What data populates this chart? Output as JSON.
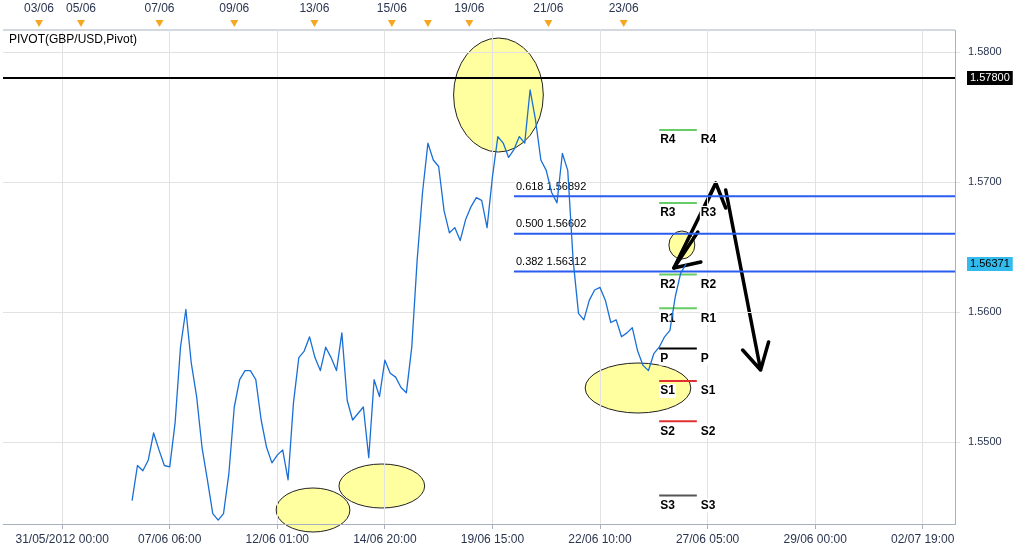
{
  "chart_data": {
    "type": "line",
    "title": "PIVOT(GBP/USD,Pivot)",
    "categories": [
      null,
      null,
      null,
      null,
      null,
      null,
      null,
      null,
      null,
      null,
      null,
      "31/05/2012 00:00",
      null,
      null,
      null,
      null,
      null,
      null,
      null,
      null,
      null,
      null,
      null,
      null,
      null,
      null,
      null,
      null,
      null,
      null,
      null,
      "07/06 06:00",
      null,
      null,
      null,
      null,
      null,
      null,
      null,
      null,
      null,
      null,
      null,
      null,
      null,
      null,
      null,
      null,
      null,
      null,
      null,
      "12/06 01:00",
      null,
      null,
      null,
      null,
      null,
      null,
      null,
      null,
      null,
      null,
      null,
      null,
      null,
      null,
      null,
      null,
      null,
      null,
      null,
      "14/06 20:00",
      null,
      null,
      null,
      null,
      null,
      null,
      null,
      null,
      null,
      null,
      null,
      null,
      null,
      null,
      null,
      null,
      null,
      null,
      null,
      "19/06 15:00",
      null,
      null,
      null,
      null,
      null,
      null,
      null,
      null,
      null,
      null,
      null,
      null,
      null,
      null,
      null,
      null,
      null,
      null,
      null,
      "22/06 10:00",
      null,
      null,
      null,
      null,
      null,
      null,
      null,
      null,
      null,
      null,
      null,
      null,
      null,
      null,
      null,
      null,
      null,
      null,
      null,
      "27/06 05:00",
      null,
      null,
      null,
      null,
      null,
      null,
      null,
      null,
      null,
      null,
      null,
      null,
      null,
      null,
      null,
      null,
      null,
      null,
      null,
      "29/06 00:00",
      null,
      null,
      null,
      null,
      null,
      null,
      null,
      null,
      null,
      null,
      null,
      null,
      null,
      null,
      null,
      null,
      null,
      null,
      null,
      "02/07 19:00",
      null,
      null,
      null,
      null,
      null,
      null
    ],
    "ylim": [
      1.5437,
      1.5817
    ],
    "yticks": [
      {
        "value": 1.55,
        "label": "1.5500"
      },
      {
        "value": 1.56,
        "label": "1.5600"
      },
      {
        "value": 1.57,
        "label": "1.5700"
      },
      {
        "value": 1.58,
        "label": "1.5800"
      }
    ],
    "grid": true,
    "series": [
      {
        "color": "#1a6fd6",
        "values": [
          null,
          null,
          null,
          null,
          null,
          null,
          null,
          null,
          null,
          null,
          null,
          null,
          null,
          null,
          null,
          null,
          null,
          null,
          null,
          null,
          null,
          null,
          null,
          null,
          1.5455,
          1.5482,
          1.5478,
          1.5486,
          1.5507,
          1.5494,
          1.5482,
          1.5481,
          1.5515,
          1.5573,
          1.5602,
          1.5561,
          1.5535,
          1.5496,
          1.5471,
          1.5445,
          1.544,
          1.5445,
          1.5476,
          1.5527,
          1.5548,
          1.5555,
          1.5555,
          1.5548,
          1.5517,
          1.5496,
          1.5484,
          1.549,
          1.5494,
          1.5471,
          1.553,
          1.5565,
          1.557,
          1.5581,
          1.5565,
          1.5555,
          1.5573,
          1.5565,
          1.5555,
          1.5584,
          1.5532,
          1.5517,
          1.5522,
          1.5527,
          1.5488,
          1.5548,
          1.5535,
          1.5563,
          1.5553,
          1.555,
          1.5542,
          1.5538,
          1.5573,
          1.564,
          1.5692,
          1.573,
          1.5717,
          1.5712,
          1.5678,
          1.5661,
          1.5665,
          1.5655,
          1.5671,
          1.5681,
          1.5688,
          1.5686,
          1.5665,
          1.5704,
          1.5735,
          1.573,
          1.5719,
          1.5725,
          1.5735,
          1.573,
          1.5771,
          1.5748,
          1.5717,
          1.5709,
          1.5692,
          1.5684,
          1.5722,
          1.5709,
          1.564,
          1.5599,
          1.5594,
          1.5609,
          1.5617,
          1.5619,
          1.5609,
          1.5592,
          1.5594,
          1.5581,
          1.5584,
          1.5588,
          1.557,
          1.5559,
          1.5555,
          1.5568,
          1.5573,
          1.5581,
          1.5586,
          1.5612,
          1.563,
          1.5637,
          null,
          null,
          null,
          null,
          null,
          null,
          null,
          null,
          null,
          null,
          null,
          null,
          null,
          null,
          null,
          null,
          null,
          null,
          null,
          null,
          null,
          null,
          null,
          null,
          null,
          null,
          null,
          null,
          null,
          null,
          null,
          null,
          null,
          null,
          null,
          null,
          null,
          null,
          null,
          null,
          null,
          null,
          null,
          null,
          null,
          null,
          null,
          null,
          null,
          null
        ]
      },
      {
        "name": "0.618 1.56892",
        "color": "#2b5cf0",
        "values": [
          null,
          null,
          null,
          null,
          null,
          null,
          null,
          null,
          null,
          null,
          null,
          null,
          null,
          null,
          null,
          null,
          null,
          null,
          null,
          null,
          null,
          null,
          null,
          null,
          null,
          null,
          null,
          null,
          null,
          null,
          null,
          null,
          null,
          null,
          null,
          null,
          null,
          null,
          null,
          null,
          null,
          null,
          null,
          null,
          null,
          null,
          null,
          null,
          null,
          null,
          null,
          null,
          null,
          null,
          null,
          null,
          null,
          null,
          null,
          null,
          null,
          null,
          null,
          null,
          null,
          null,
          null,
          null,
          null,
          null,
          null,
          null,
          null,
          null,
          null,
          null,
          null,
          null,
          null,
          null,
          null,
          null,
          null,
          null,
          null,
          null,
          null,
          null,
          null,
          null,
          null,
          null,
          null,
          null,
          null,
          1.56892,
          1.56892,
          1.56892,
          1.56892,
          1.56892,
          1.56892,
          1.56892,
          1.56892,
          1.56892,
          1.56892,
          1.56892,
          1.56892,
          1.56892,
          1.56892,
          1.56892,
          1.56892,
          1.56892,
          1.56892,
          1.56892,
          1.56892,
          1.56892,
          1.56892,
          1.56892,
          1.56892,
          1.56892,
          1.56892,
          1.56892,
          1.56892,
          1.56892,
          1.56892,
          1.56892,
          1.56892,
          1.56892,
          1.56892,
          1.56892,
          1.56892,
          1.56892,
          1.56892,
          1.56892,
          1.56892,
          1.56892,
          1.56892,
          1.56892,
          1.56892,
          1.56892,
          1.56892,
          1.56892,
          1.56892,
          1.56892,
          1.56892,
          1.56892,
          1.56892,
          1.56892,
          1.56892,
          1.56892,
          1.56892,
          1.56892,
          1.56892,
          1.56892,
          1.56892,
          1.56892,
          1.56892,
          1.56892,
          1.56892,
          1.56892,
          1.56892,
          1.56892,
          1.56892,
          1.56892,
          1.56892,
          1.56892,
          1.56892,
          1.56892,
          1.56892,
          1.56892,
          1.56892,
          1.56892,
          1.56892,
          1.56892,
          1.56892,
          1.56892,
          1.56892,
          1.56892
        ]
      },
      {
        "name": "0.500 1.56602",
        "color": "#2b5cf0",
        "values": [
          null,
          null,
          null,
          null,
          null,
          null,
          null,
          null,
          null,
          null,
          null,
          null,
          null,
          null,
          null,
          null,
          null,
          null,
          null,
          null,
          null,
          null,
          null,
          null,
          null,
          null,
          null,
          null,
          null,
          null,
          null,
          null,
          null,
          null,
          null,
          null,
          null,
          null,
          null,
          null,
          null,
          null,
          null,
          null,
          null,
          null,
          null,
          null,
          null,
          null,
          null,
          null,
          null,
          null,
          null,
          null,
          null,
          null,
          null,
          null,
          null,
          null,
          null,
          null,
          null,
          null,
          null,
          null,
          null,
          null,
          null,
          null,
          null,
          null,
          null,
          null,
          null,
          null,
          null,
          null,
          null,
          null,
          null,
          null,
          null,
          null,
          null,
          null,
          null,
          null,
          null,
          null,
          null,
          null,
          null,
          1.56602,
          1.56602,
          1.56602,
          1.56602,
          1.56602,
          1.56602,
          1.56602,
          1.56602,
          1.56602,
          1.56602,
          1.56602,
          1.56602,
          1.56602,
          1.56602,
          1.56602,
          1.56602,
          1.56602,
          1.56602,
          1.56602,
          1.56602,
          1.56602,
          1.56602,
          1.56602,
          1.56602,
          1.56602,
          1.56602,
          1.56602,
          1.56602,
          1.56602,
          1.56602,
          1.56602,
          1.56602,
          1.56602,
          1.56602,
          1.56602,
          1.56602,
          1.56602,
          1.56602,
          1.56602,
          1.56602,
          1.56602,
          1.56602,
          1.56602,
          1.56602,
          1.56602,
          1.56602,
          1.56602,
          1.56602,
          1.56602,
          1.56602,
          1.56602,
          1.56602,
          1.56602,
          1.56602,
          1.56602,
          1.56602,
          1.56602,
          1.56602,
          1.56602,
          1.56602,
          1.56602,
          1.56602,
          1.56602,
          1.56602,
          1.56602,
          1.56602,
          1.56602,
          1.56602,
          1.56602,
          1.56602,
          1.56602,
          1.56602,
          1.56602,
          1.56602,
          1.56602,
          1.56602,
          1.56602,
          1.56602,
          1.56602,
          1.56602,
          1.56602,
          1.56602,
          1.56602
        ]
      },
      {
        "name": "0.382 1.56312",
        "color": "#2b5cf0",
        "values": [
          null,
          null,
          null,
          null,
          null,
          null,
          null,
          null,
          null,
          null,
          null,
          null,
          null,
          null,
          null,
          null,
          null,
          null,
          null,
          null,
          null,
          null,
          null,
          null,
          null,
          null,
          null,
          null,
          null,
          null,
          null,
          null,
          null,
          null,
          null,
          null,
          null,
          null,
          null,
          null,
          null,
          null,
          null,
          null,
          null,
          null,
          null,
          null,
          null,
          null,
          null,
          null,
          null,
          null,
          null,
          null,
          null,
          null,
          null,
          null,
          null,
          null,
          null,
          null,
          null,
          null,
          null,
          null,
          null,
          null,
          null,
          null,
          null,
          null,
          null,
          null,
          null,
          null,
          null,
          null,
          null,
          null,
          null,
          null,
          null,
          null,
          null,
          null,
          null,
          null,
          null,
          null,
          null,
          null,
          null,
          1.56312,
          1.56312,
          1.56312,
          1.56312,
          1.56312,
          1.56312,
          1.56312,
          1.56312,
          1.56312,
          1.56312,
          1.56312,
          1.56312,
          1.56312,
          1.56312,
          1.56312,
          1.56312,
          1.56312,
          1.56312,
          1.56312,
          1.56312,
          1.56312,
          1.56312,
          1.56312,
          1.56312,
          1.56312,
          1.56312,
          1.56312,
          1.56312,
          1.56312,
          1.56312,
          1.56312,
          1.56312,
          1.56312,
          1.56312,
          1.56312,
          1.56312,
          1.56312,
          1.56312,
          1.56312,
          1.56312,
          1.56312,
          1.56312,
          1.56312,
          1.56312,
          1.56312,
          1.56312,
          1.56312,
          1.56312,
          1.56312,
          1.56312,
          1.56312,
          1.56312,
          1.56312,
          1.56312,
          1.56312,
          1.56312,
          1.56312,
          1.56312,
          1.56312,
          1.56312,
          1.56312,
          1.56312,
          1.56312,
          1.56312,
          1.56312,
          1.56312,
          1.56312,
          1.56312,
          1.56312,
          1.56312,
          1.56312,
          1.56312,
          1.56312,
          1.56312,
          1.56312,
          1.56312,
          1.56312,
          1.56312,
          1.56312,
          1.56312,
          1.56312,
          1.56312,
          1.56312
        ]
      },
      {
        "name": "R4",
        "color": "#66cc66",
        "values": [
          null,
          null,
          null,
          null,
          null,
          null,
          null,
          null,
          null,
          null,
          null,
          null,
          null,
          null,
          null,
          null,
          null,
          null,
          null,
          null,
          null,
          null,
          null,
          null,
          null,
          null,
          null,
          null,
          null,
          null,
          null,
          null,
          null,
          null,
          null,
          null,
          null,
          null,
          null,
          null,
          null,
          null,
          null,
          null,
          null,
          null,
          null,
          null,
          null,
          null,
          null,
          null,
          null,
          null,
          null,
          null,
          null,
          null,
          null,
          null,
          null,
          null,
          null,
          null,
          null,
          null,
          null,
          null,
          null,
          null,
          null,
          null,
          null,
          null,
          null,
          null,
          null,
          null,
          null,
          null,
          null,
          null,
          null,
          null,
          null,
          null,
          null,
          null,
          null,
          null,
          null,
          null,
          null,
          null,
          null,
          null,
          null,
          null,
          null,
          null,
          null,
          null,
          null,
          null,
          null,
          null,
          null,
          null,
          null,
          null,
          null,
          null,
          null,
          null,
          null,
          null,
          null,
          null,
          null,
          null,
          null,
          null,
          1.574,
          1.574,
          1.574,
          1.574,
          1.574,
          1.574,
          1.574,
          1.574,
          null,
          null,
          null,
          null,
          null,
          null,
          null,
          null,
          null,
          null,
          null,
          null,
          null,
          null,
          null,
          null,
          null,
          null,
          null,
          null,
          null,
          null,
          null,
          null,
          null,
          null,
          null,
          null,
          null,
          null,
          null,
          null,
          null,
          null,
          null,
          null,
          null,
          null,
          null,
          null,
          null,
          null,
          null,
          null,
          null,
          null,
          null,
          null
        ]
      },
      {
        "name": "R3",
        "color": "#66cc66",
        "values": [
          null,
          null,
          null,
          null,
          null,
          null,
          null,
          null,
          null,
          null,
          null,
          null,
          null,
          null,
          null,
          null,
          null,
          null,
          null,
          null,
          null,
          null,
          null,
          null,
          null,
          null,
          null,
          null,
          null,
          null,
          null,
          null,
          null,
          null,
          null,
          null,
          null,
          null,
          null,
          null,
          null,
          null,
          null,
          null,
          null,
          null,
          null,
          null,
          null,
          null,
          null,
          null,
          null,
          null,
          null,
          null,
          null,
          null,
          null,
          null,
          null,
          null,
          null,
          null,
          null,
          null,
          null,
          null,
          null,
          null,
          null,
          null,
          null,
          null,
          null,
          null,
          null,
          null,
          null,
          null,
          null,
          null,
          null,
          null,
          null,
          null,
          null,
          null,
          null,
          null,
          null,
          null,
          null,
          null,
          null,
          null,
          null,
          null,
          null,
          null,
          null,
          null,
          null,
          null,
          null,
          null,
          null,
          null,
          null,
          null,
          null,
          null,
          null,
          null,
          null,
          null,
          null,
          null,
          null,
          null,
          null,
          null,
          1.5684,
          1.5684,
          1.5684,
          1.5684,
          1.5684,
          1.5684,
          1.5684,
          1.5684,
          null,
          null,
          null,
          null,
          null,
          null,
          null,
          null,
          null,
          null,
          null,
          null,
          null,
          null,
          null,
          null,
          null,
          null,
          null,
          null,
          null,
          null,
          null,
          null,
          null,
          null,
          null,
          null,
          null,
          null,
          null,
          null,
          null,
          null,
          null,
          null,
          null,
          null,
          null,
          null,
          null,
          null,
          null,
          null,
          null,
          null,
          null,
          null
        ]
      },
      {
        "name": "R2",
        "color": "#66cc66",
        "values": [
          null,
          null,
          null,
          null,
          null,
          null,
          null,
          null,
          null,
          null,
          null,
          null,
          null,
          null,
          null,
          null,
          null,
          null,
          null,
          null,
          null,
          null,
          null,
          null,
          null,
          null,
          null,
          null,
          null,
          null,
          null,
          null,
          null,
          null,
          null,
          null,
          null,
          null,
          null,
          null,
          null,
          null,
          null,
          null,
          null,
          null,
          null,
          null,
          null,
          null,
          null,
          null,
          null,
          null,
          null,
          null,
          null,
          null,
          null,
          null,
          null,
          null,
          null,
          null,
          null,
          null,
          null,
          null,
          null,
          null,
          null,
          null,
          null,
          null,
          null,
          null,
          null,
          null,
          null,
          null,
          null,
          null,
          null,
          null,
          null,
          null,
          null,
          null,
          null,
          null,
          null,
          null,
          null,
          null,
          null,
          null,
          null,
          null,
          null,
          null,
          null,
          null,
          null,
          null,
          null,
          null,
          null,
          null,
          null,
          null,
          null,
          null,
          null,
          null,
          null,
          null,
          null,
          null,
          null,
          null,
          null,
          null,
          1.5629,
          1.5629,
          1.5629,
          1.5629,
          1.5629,
          1.5629,
          1.5629,
          1.5629,
          null,
          null,
          null,
          null,
          null,
          null,
          null,
          null,
          null,
          null,
          null,
          null,
          null,
          null,
          null,
          null,
          null,
          null,
          null,
          null,
          null,
          null,
          null,
          null,
          null,
          null,
          null,
          null,
          null,
          null,
          null,
          null,
          null,
          null,
          null,
          null,
          null,
          null,
          null,
          null,
          null,
          null,
          null,
          null,
          null,
          null,
          null,
          null
        ]
      },
      {
        "name": "R1",
        "color": "#66cc66",
        "values": [
          null,
          null,
          null,
          null,
          null,
          null,
          null,
          null,
          null,
          null,
          null,
          null,
          null,
          null,
          null,
          null,
          null,
          null,
          null,
          null,
          null,
          null,
          null,
          null,
          null,
          null,
          null,
          null,
          null,
          null,
          null,
          null,
          null,
          null,
          null,
          null,
          null,
          null,
          null,
          null,
          null,
          null,
          null,
          null,
          null,
          null,
          null,
          null,
          null,
          null,
          null,
          null,
          null,
          null,
          null,
          null,
          null,
          null,
          null,
          null,
          null,
          null,
          null,
          null,
          null,
          null,
          null,
          null,
          null,
          null,
          null,
          null,
          null,
          null,
          null,
          null,
          null,
          null,
          null,
          null,
          null,
          null,
          null,
          null,
          null,
          null,
          null,
          null,
          null,
          null,
          null,
          null,
          null,
          null,
          null,
          null,
          null,
          null,
          null,
          null,
          null,
          null,
          null,
          null,
          null,
          null,
          null,
          null,
          null,
          null,
          null,
          null,
          null,
          null,
          null,
          null,
          null,
          null,
          null,
          null,
          null,
          null,
          1.5603,
          1.5603,
          1.5603,
          1.5603,
          1.5603,
          1.5603,
          1.5603,
          1.5603,
          null,
          null,
          null,
          null,
          null,
          null,
          null,
          null,
          null,
          null,
          null,
          null,
          null,
          null,
          null,
          null,
          null,
          null,
          null,
          null,
          null,
          null,
          null,
          null,
          null,
          null,
          null,
          null,
          null,
          null,
          null,
          null,
          null,
          null,
          null,
          null,
          null,
          null,
          null,
          null,
          null,
          null,
          null,
          null,
          null,
          null,
          null,
          null
        ]
      },
      {
        "name": "P",
        "color": "#000000",
        "values": [
          null,
          null,
          null,
          null,
          null,
          null,
          null,
          null,
          null,
          null,
          null,
          null,
          null,
          null,
          null,
          null,
          null,
          null,
          null,
          null,
          null,
          null,
          null,
          null,
          null,
          null,
          null,
          null,
          null,
          null,
          null,
          null,
          null,
          null,
          null,
          null,
          null,
          null,
          null,
          null,
          null,
          null,
          null,
          null,
          null,
          null,
          null,
          null,
          null,
          null,
          null,
          null,
          null,
          null,
          null,
          null,
          null,
          null,
          null,
          null,
          null,
          null,
          null,
          null,
          null,
          null,
          null,
          null,
          null,
          null,
          null,
          null,
          null,
          null,
          null,
          null,
          null,
          null,
          null,
          null,
          null,
          null,
          null,
          null,
          null,
          null,
          null,
          null,
          null,
          null,
          null,
          null,
          null,
          null,
          null,
          null,
          null,
          null,
          null,
          null,
          null,
          null,
          null,
          null,
          null,
          null,
          null,
          null,
          null,
          null,
          null,
          null,
          null,
          null,
          null,
          null,
          null,
          null,
          null,
          null,
          null,
          null,
          1.5572,
          1.5572,
          1.5572,
          1.5572,
          1.5572,
          1.5572,
          1.5572,
          1.5572,
          null,
          null,
          null,
          null,
          null,
          null,
          null,
          null,
          null,
          null,
          null,
          null,
          null,
          null,
          null,
          null,
          null,
          null,
          null,
          null,
          null,
          null,
          null,
          null,
          null,
          null,
          null,
          null,
          null,
          null,
          null,
          null,
          null,
          null,
          null,
          null,
          null,
          null,
          null,
          null,
          null,
          null,
          null,
          null,
          null,
          null,
          null,
          null
        ]
      },
      {
        "name": "S1",
        "color": "#e03030",
        "values": [
          null,
          null,
          null,
          null,
          null,
          null,
          null,
          null,
          null,
          null,
          null,
          null,
          null,
          null,
          null,
          null,
          null,
          null,
          null,
          null,
          null,
          null,
          null,
          null,
          null,
          null,
          null,
          null,
          null,
          null,
          null,
          null,
          null,
          null,
          null,
          null,
          null,
          null,
          null,
          null,
          null,
          null,
          null,
          null,
          null,
          null,
          null,
          null,
          null,
          null,
          null,
          null,
          null,
          null,
          null,
          null,
          null,
          null,
          null,
          null,
          null,
          null,
          null,
          null,
          null,
          null,
          null,
          null,
          null,
          null,
          null,
          null,
          null,
          null,
          null,
          null,
          null,
          null,
          null,
          null,
          null,
          null,
          null,
          null,
          null,
          null,
          null,
          null,
          null,
          null,
          null,
          null,
          null,
          null,
          null,
          null,
          null,
          null,
          null,
          null,
          null,
          null,
          null,
          null,
          null,
          null,
          null,
          null,
          null,
          null,
          null,
          null,
          null,
          null,
          null,
          null,
          null,
          null,
          null,
          null,
          null,
          null,
          1.5547,
          1.5547,
          1.5547,
          1.5547,
          1.5547,
          1.5547,
          1.5547,
          1.5547,
          null,
          null,
          null,
          null,
          null,
          null,
          null,
          null,
          null,
          null,
          null,
          null,
          null,
          null,
          null,
          null,
          null,
          null,
          null,
          null,
          null,
          null,
          null,
          null,
          null,
          null,
          null,
          null,
          null,
          null,
          null,
          null,
          null,
          null,
          null,
          null,
          null,
          null,
          null,
          null,
          null,
          null,
          null,
          null,
          null,
          null,
          null,
          null
        ]
      },
      {
        "name": "S2",
        "color": "#e03030",
        "values": [
          null,
          null,
          null,
          null,
          null,
          null,
          null,
          null,
          null,
          null,
          null,
          null,
          null,
          null,
          null,
          null,
          null,
          null,
          null,
          null,
          null,
          null,
          null,
          null,
          null,
          null,
          null,
          null,
          null,
          null,
          null,
          null,
          null,
          null,
          null,
          null,
          null,
          null,
          null,
          null,
          null,
          null,
          null,
          null,
          null,
          null,
          null,
          null,
          null,
          null,
          null,
          null,
          null,
          null,
          null,
          null,
          null,
          null,
          null,
          null,
          null,
          null,
          null,
          null,
          null,
          null,
          null,
          null,
          null,
          null,
          null,
          null,
          null,
          null,
          null,
          null,
          null,
          null,
          null,
          null,
          null,
          null,
          null,
          null,
          null,
          null,
          null,
          null,
          null,
          null,
          null,
          null,
          null,
          null,
          null,
          null,
          null,
          null,
          null,
          null,
          null,
          null,
          null,
          null,
          null,
          null,
          null,
          null,
          null,
          null,
          null,
          null,
          null,
          null,
          null,
          null,
          null,
          null,
          null,
          null,
          null,
          null,
          1.5516,
          1.5516,
          1.5516,
          1.5516,
          1.5516,
          1.5516,
          1.5516,
          1.5516,
          null,
          null,
          null,
          null,
          null,
          null,
          null,
          null,
          null,
          null,
          null,
          null,
          null,
          null,
          null,
          null,
          null,
          null,
          null,
          null,
          null,
          null,
          null,
          null,
          null,
          null,
          null,
          null,
          null,
          null,
          null,
          null,
          null,
          null,
          null,
          null,
          null,
          null,
          null,
          null,
          null,
          null,
          null,
          null,
          null,
          null,
          null,
          null
        ]
      },
      {
        "name": "S3",
        "color": "#555555",
        "values": [
          null,
          null,
          null,
          null,
          null,
          null,
          null,
          null,
          null,
          null,
          null,
          null,
          null,
          null,
          null,
          null,
          null,
          null,
          null,
          null,
          null,
          null,
          null,
          null,
          null,
          null,
          null,
          null,
          null,
          null,
          null,
          null,
          null,
          null,
          null,
          null,
          null,
          null,
          null,
          null,
          null,
          null,
          null,
          null,
          null,
          null,
          null,
          null,
          null,
          null,
          null,
          null,
          null,
          null,
          null,
          null,
          null,
          null,
          null,
          null,
          null,
          null,
          null,
          null,
          null,
          null,
          null,
          null,
          null,
          null,
          null,
          null,
          null,
          null,
          null,
          null,
          null,
          null,
          null,
          null,
          null,
          null,
          null,
          null,
          null,
          null,
          null,
          null,
          null,
          null,
          null,
          null,
          null,
          null,
          null,
          null,
          null,
          null,
          null,
          null,
          null,
          null,
          null,
          null,
          null,
          null,
          null,
          null,
          null,
          null,
          null,
          null,
          null,
          null,
          null,
          null,
          null,
          null,
          null,
          null,
          null,
          null,
          1.5459,
          1.5459,
          1.5459,
          1.5459,
          1.5459,
          1.5459,
          1.5459,
          1.5459,
          null,
          null,
          null,
          null,
          null,
          null,
          null,
          null,
          null,
          null,
          null,
          null,
          null,
          null,
          null,
          null,
          null,
          null,
          null,
          null,
          null,
          null,
          null,
          null,
          null,
          null,
          null,
          null,
          null,
          null,
          null,
          null,
          null,
          null,
          null,
          null,
          null,
          null,
          null,
          null,
          null,
          null,
          null,
          null,
          null,
          null,
          null,
          null
        ]
      }
    ],
    "ref_lines": [
      {
        "axis": "y",
        "value": 1.578,
        "label": "1.57800",
        "color": "#000000"
      }
    ],
    "annotations": [
      "1.56371",
      "03/06",
      "05/06",
      "07/06",
      "09/06",
      "13/06",
      "15/06",
      "19/06",
      "21/06",
      "23/06"
    ],
    "line_style": "solid"
  }
}
